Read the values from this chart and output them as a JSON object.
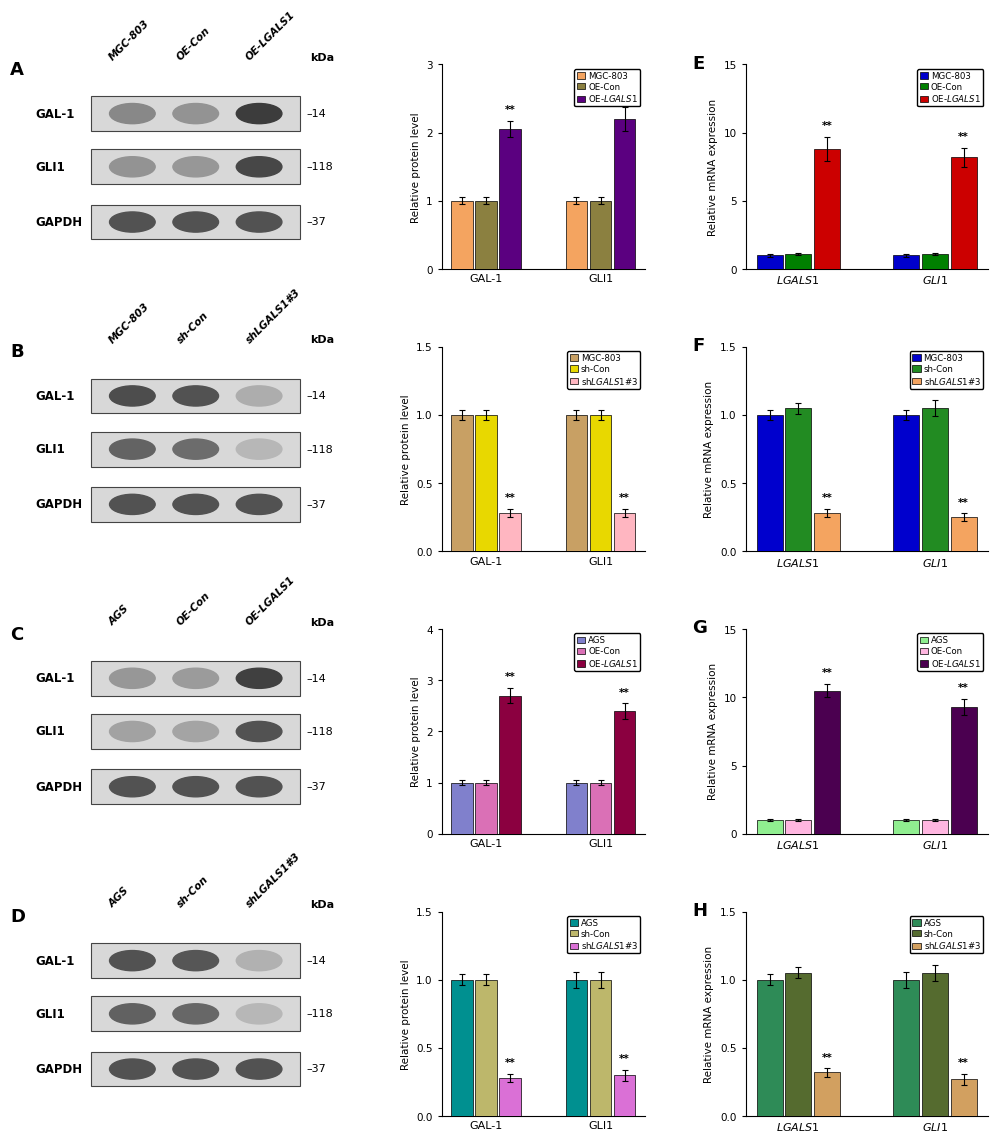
{
  "panel_A_bar": {
    "groups": [
      "GAL-1",
      "GLI1"
    ],
    "series": [
      "MGC-803",
      "OE-Con",
      "OE-LGALS1"
    ],
    "values": [
      [
        1.0,
        1.0,
        2.05
      ],
      [
        1.0,
        1.0,
        2.2
      ]
    ],
    "colors": [
      "#F4A460",
      "#8B8040",
      "#5B0080"
    ],
    "errors": [
      [
        0.05,
        0.05,
        0.12
      ],
      [
        0.05,
        0.05,
        0.18
      ]
    ],
    "ylim": [
      0,
      3
    ],
    "yticks": [
      0,
      1,
      2,
      3
    ],
    "ylabel": "Relative protein level",
    "sig": [
      "**",
      "**"
    ],
    "sig_series": 2
  },
  "panel_B_bar": {
    "groups": [
      "GAL-1",
      "GLI1"
    ],
    "series": [
      "MGC-803",
      "sh-Con",
      "shLGALS1#3"
    ],
    "values": [
      [
        1.0,
        1.0,
        0.28
      ],
      [
        1.0,
        1.0,
        0.28
      ]
    ],
    "colors": [
      "#C8A064",
      "#E8D800",
      "#FFB6C1"
    ],
    "errors": [
      [
        0.04,
        0.04,
        0.03
      ],
      [
        0.04,
        0.04,
        0.03
      ]
    ],
    "ylim": [
      0,
      1.5
    ],
    "yticks": [
      0.0,
      0.5,
      1.0,
      1.5
    ],
    "ylabel": "Relative protein level",
    "sig": [
      "**",
      "**"
    ],
    "sig_series": 2
  },
  "panel_C_bar": {
    "groups": [
      "GAL-1",
      "GLI1"
    ],
    "series": [
      "AGS",
      "OE-Con",
      "OE-LGALS1"
    ],
    "values": [
      [
        1.0,
        1.0,
        2.7
      ],
      [
        1.0,
        1.0,
        2.4
      ]
    ],
    "colors": [
      "#8080CC",
      "#DA70B6",
      "#8B0040"
    ],
    "errors": [
      [
        0.05,
        0.05,
        0.15
      ],
      [
        0.05,
        0.05,
        0.15
      ]
    ],
    "ylim": [
      0,
      4
    ],
    "yticks": [
      0,
      1,
      2,
      3,
      4
    ],
    "ylabel": "Relative protein level",
    "sig": [
      "**",
      "**"
    ],
    "sig_series": 2
  },
  "panel_D_bar": {
    "groups": [
      "GAL-1",
      "GLI1"
    ],
    "series": [
      "AGS",
      "sh-Con",
      "shLGALS1#3"
    ],
    "values": [
      [
        1.0,
        1.0,
        0.28
      ],
      [
        1.0,
        1.0,
        0.3
      ]
    ],
    "colors": [
      "#009090",
      "#BDB76B",
      "#DA70D6"
    ],
    "errors": [
      [
        0.04,
        0.04,
        0.03
      ],
      [
        0.06,
        0.06,
        0.04
      ]
    ],
    "ylim": [
      0,
      1.5
    ],
    "yticks": [
      0.0,
      0.5,
      1.0,
      1.5
    ],
    "ylabel": "Relative protein level",
    "sig": [
      "**",
      "**"
    ],
    "sig_series": 2
  },
  "panel_E_bar": {
    "groups": [
      "LGALS1",
      "GLI1"
    ],
    "series": [
      "MGC-803",
      "OE-Con",
      "OE-LGALS1"
    ],
    "values": [
      [
        1.0,
        1.1,
        8.8
      ],
      [
        1.0,
        1.1,
        8.2
      ]
    ],
    "colors": [
      "#0000CD",
      "#008000",
      "#CC0000"
    ],
    "errors": [
      [
        0.08,
        0.08,
        0.9
      ],
      [
        0.08,
        0.08,
        0.7
      ]
    ],
    "ylim": [
      0,
      15
    ],
    "yticks": [
      0,
      5,
      10,
      15
    ],
    "ylabel": "Relative mRNA expression",
    "sig": [
      "**",
      "**"
    ],
    "sig_series": 2
  },
  "panel_F_bar": {
    "groups": [
      "LGALS1",
      "GLI1"
    ],
    "series": [
      "MGC-803",
      "sh-Con",
      "shLGALS1#3"
    ],
    "values": [
      [
        1.0,
        1.05,
        0.28
      ],
      [
        1.0,
        1.05,
        0.25
      ]
    ],
    "colors": [
      "#0000CD",
      "#228B22",
      "#F4A460"
    ],
    "errors": [
      [
        0.04,
        0.04,
        0.03
      ],
      [
        0.04,
        0.06,
        0.03
      ]
    ],
    "ylim": [
      0,
      1.5
    ],
    "yticks": [
      0.0,
      0.5,
      1.0,
      1.5
    ],
    "ylabel": "Relative mRNA expression",
    "sig": [
      "**",
      "**"
    ],
    "sig_series": 2
  },
  "panel_G_bar": {
    "groups": [
      "LGALS1",
      "GLI1"
    ],
    "series": [
      "AGS",
      "OE-Con",
      "OE-LGALS1"
    ],
    "values": [
      [
        1.0,
        1.0,
        10.5
      ],
      [
        1.0,
        1.0,
        9.3
      ]
    ],
    "colors": [
      "#90EE90",
      "#FFB6E0",
      "#4B0050"
    ],
    "errors": [
      [
        0.05,
        0.05,
        0.5
      ],
      [
        0.05,
        0.05,
        0.6
      ]
    ],
    "ylim": [
      0,
      15
    ],
    "yticks": [
      0,
      5,
      10,
      15
    ],
    "ylabel": "Relative mRNA expression",
    "sig": [
      "**",
      "**"
    ],
    "sig_series": 2
  },
  "panel_H_bar": {
    "groups": [
      "LGALS1",
      "GLI1"
    ],
    "series": [
      "AGS",
      "sh-Con",
      "shLGALS1#3"
    ],
    "values": [
      [
        1.0,
        1.05,
        0.32
      ],
      [
        1.0,
        1.05,
        0.27
      ]
    ],
    "colors": [
      "#2E8B57",
      "#556B2F",
      "#D2A060"
    ],
    "errors": [
      [
        0.04,
        0.04,
        0.03
      ],
      [
        0.06,
        0.06,
        0.04
      ]
    ],
    "ylim": [
      0,
      1.5
    ],
    "yticks": [
      0.0,
      0.5,
      1.0,
      1.5
    ],
    "ylabel": "Relative mRNA expression",
    "sig": [
      "**",
      "**"
    ],
    "sig_series": 2
  },
  "wb_labels_A": [
    "GAL-1",
    "GLI1",
    "GAPDH"
  ],
  "wb_kda_A": [
    "14",
    "118",
    "37"
  ],
  "wb_samples_A": [
    "MGC-803",
    "OE-Con",
    "OE-LGALS1"
  ],
  "wb_labels_B": [
    "GAL-1",
    "GLI1",
    "GAPDH"
  ],
  "wb_kda_B": [
    "14",
    "118",
    "37"
  ],
  "wb_samples_B": [
    "MGC-803",
    "sh-Con",
    "shLGALS1#3"
  ],
  "wb_labels_C": [
    "GAL-1",
    "GLI1",
    "GAPDH"
  ],
  "wb_kda_C": [
    "14",
    "118",
    "37"
  ],
  "wb_samples_C": [
    "AGS",
    "OE-Con",
    "OE-LGALS1"
  ],
  "wb_labels_D": [
    "GAL-1",
    "GLI1",
    "GAPDH"
  ],
  "wb_kda_D": [
    "14",
    "118",
    "37"
  ],
  "wb_samples_D": [
    "AGS",
    "sh-Con",
    "shLGALS1#3"
  ],
  "figure_bg": "#FFFFFF"
}
